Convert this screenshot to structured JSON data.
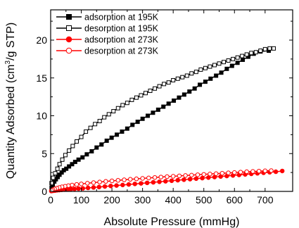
{
  "chart_data": {
    "type": "line",
    "xlabel": "Absolute Pressure (mmHg)",
    "ylabel_main": "Quantity Adsorbed (cm",
    "ylabel_sup": "3",
    "ylabel_tail": "/g STP)",
    "xlim": [
      0,
      790
    ],
    "ylim": [
      0,
      24
    ],
    "x_ticks": [
      "0",
      "100",
      "200",
      "300",
      "400",
      "500",
      "600",
      "700"
    ],
    "y_ticks": [
      "0",
      "5",
      "10",
      "15",
      "20"
    ],
    "legend_position": "top-left",
    "grid": false,
    "series": [
      {
        "name": "adsorption at 195K",
        "color": "#000000",
        "marker": "square",
        "filled": true,
        "points": [
          [
            3,
            0.5
          ],
          [
            7,
            0.9
          ],
          [
            12,
            1.3
          ],
          [
            17,
            1.6
          ],
          [
            23,
            1.9
          ],
          [
            29,
            2.2
          ],
          [
            36,
            2.5
          ],
          [
            43,
            2.8
          ],
          [
            51,
            3.0
          ],
          [
            60,
            3.3
          ],
          [
            70,
            3.6
          ],
          [
            80,
            3.9
          ],
          [
            91,
            4.2
          ],
          [
            104,
            4.5
          ],
          [
            118,
            4.9
          ],
          [
            134,
            5.3
          ],
          [
            150,
            5.8
          ],
          [
            166,
            6.2
          ],
          [
            183,
            6.7
          ],
          [
            199,
            7.1
          ],
          [
            216,
            7.5
          ],
          [
            233,
            7.9
          ],
          [
            250,
            8.3
          ],
          [
            267,
            8.8
          ],
          [
            284,
            9.2
          ],
          [
            300,
            9.6
          ],
          [
            317,
            10.0
          ],
          [
            334,
            10.4
          ],
          [
            351,
            10.8
          ],
          [
            368,
            11.2
          ],
          [
            385,
            11.6
          ],
          [
            402,
            12.0
          ],
          [
            419,
            12.4
          ],
          [
            436,
            12.8
          ],
          [
            453,
            13.2
          ],
          [
            470,
            13.6
          ],
          [
            487,
            14.1
          ],
          [
            505,
            14.5
          ],
          [
            522,
            14.9
          ],
          [
            540,
            15.3
          ],
          [
            557,
            15.7
          ],
          [
            575,
            16.2
          ],
          [
            592,
            16.6
          ],
          [
            610,
            17.0
          ],
          [
            627,
            17.4
          ],
          [
            645,
            17.8
          ],
          [
            663,
            18.2
          ],
          [
            685,
            18.5
          ],
          [
            712,
            18.6
          ]
        ]
      },
      {
        "name": "desorption at 195K",
        "color": "#000000",
        "marker": "square",
        "filled": false,
        "points": [
          [
            728,
            18.9
          ],
          [
            715,
            18.9
          ],
          [
            700,
            18.8
          ],
          [
            685,
            18.6
          ],
          [
            670,
            18.4
          ],
          [
            655,
            18.3
          ],
          [
            640,
            18.1
          ],
          [
            625,
            17.9
          ],
          [
            610,
            17.7
          ],
          [
            595,
            17.5
          ],
          [
            580,
            17.3
          ],
          [
            565,
            17.1
          ],
          [
            550,
            16.9
          ],
          [
            535,
            16.7
          ],
          [
            520,
            16.5
          ],
          [
            505,
            16.3
          ],
          [
            490,
            16.1
          ],
          [
            475,
            15.8
          ],
          [
            460,
            15.6
          ],
          [
            445,
            15.3
          ],
          [
            430,
            15.1
          ],
          [
            415,
            14.9
          ],
          [
            400,
            14.7
          ],
          [
            385,
            14.4
          ],
          [
            370,
            14.2
          ],
          [
            355,
            13.9
          ],
          [
            340,
            13.6
          ],
          [
            325,
            13.3
          ],
          [
            310,
            13.0
          ],
          [
            295,
            12.7
          ],
          [
            280,
            12.4
          ],
          [
            265,
            12.1
          ],
          [
            250,
            11.7
          ],
          [
            235,
            11.4
          ],
          [
            220,
            11.0
          ],
          [
            205,
            10.6
          ],
          [
            190,
            10.2
          ],
          [
            175,
            9.8
          ],
          [
            160,
            9.3
          ],
          [
            145,
            8.9
          ],
          [
            130,
            8.4
          ],
          [
            115,
            7.9
          ],
          [
            100,
            7.2
          ],
          [
            85,
            6.6
          ],
          [
            72,
            6.0
          ],
          [
            60,
            5.4
          ],
          [
            48,
            4.8
          ],
          [
            38,
            4.2
          ],
          [
            29,
            3.6
          ],
          [
            22,
            3.0
          ],
          [
            15,
            2.4
          ],
          [
            8,
            1.8
          ],
          [
            3,
            1.1
          ]
        ]
      },
      {
        "name": "adsorption at 273K",
        "color": "#ff0000",
        "marker": "circle",
        "filled": true,
        "points": [
          [
            2,
            0.05
          ],
          [
            6,
            0.08
          ],
          [
            10,
            0.1
          ],
          [
            15,
            0.12
          ],
          [
            21,
            0.15
          ],
          [
            28,
            0.18
          ],
          [
            36,
            0.21
          ],
          [
            45,
            0.24
          ],
          [
            55,
            0.27
          ],
          [
            66,
            0.3
          ],
          [
            78,
            0.33
          ],
          [
            91,
            0.37
          ],
          [
            105,
            0.4
          ],
          [
            122,
            0.46
          ],
          [
            140,
            0.52
          ],
          [
            158,
            0.58
          ],
          [
            177,
            0.65
          ],
          [
            196,
            0.72
          ],
          [
            215,
            0.78
          ],
          [
            235,
            0.85
          ],
          [
            255,
            0.92
          ],
          [
            275,
            0.99
          ],
          [
            295,
            1.06
          ],
          [
            315,
            1.13
          ],
          [
            335,
            1.2
          ],
          [
            355,
            1.27
          ],
          [
            375,
            1.34
          ],
          [
            395,
            1.41
          ],
          [
            415,
            1.48
          ],
          [
            435,
            1.55
          ],
          [
            455,
            1.62
          ],
          [
            475,
            1.69
          ],
          [
            495,
            1.76
          ],
          [
            515,
            1.83
          ],
          [
            535,
            1.9
          ],
          [
            555,
            1.97
          ],
          [
            575,
            2.04
          ],
          [
            595,
            2.11
          ],
          [
            615,
            2.18
          ],
          [
            635,
            2.25
          ],
          [
            655,
            2.32
          ],
          [
            675,
            2.39
          ],
          [
            695,
            2.46
          ],
          [
            715,
            2.53
          ],
          [
            735,
            2.6
          ],
          [
            756,
            2.7
          ]
        ]
      },
      {
        "name": "desorption at 273K",
        "color": "#ff0000",
        "marker": "circle",
        "filled": false,
        "points": [
          [
            720,
            2.75
          ],
          [
            700,
            2.72
          ],
          [
            680,
            2.68
          ],
          [
            660,
            2.64
          ],
          [
            640,
            2.6
          ],
          [
            620,
            2.55
          ],
          [
            600,
            2.5
          ],
          [
            580,
            2.45
          ],
          [
            560,
            2.4
          ],
          [
            540,
            2.35
          ],
          [
            520,
            2.3
          ],
          [
            500,
            2.25
          ],
          [
            480,
            2.2
          ],
          [
            460,
            2.15
          ],
          [
            440,
            2.1
          ],
          [
            420,
            2.05
          ],
          [
            400,
            2.0
          ],
          [
            380,
            1.95
          ],
          [
            360,
            1.9
          ],
          [
            340,
            1.84
          ],
          [
            320,
            1.78
          ],
          [
            300,
            1.72
          ],
          [
            280,
            1.66
          ],
          [
            260,
            1.6
          ],
          [
            240,
            1.53
          ],
          [
            220,
            1.46
          ],
          [
            200,
            1.39
          ],
          [
            180,
            1.32
          ],
          [
            160,
            1.24
          ],
          [
            140,
            1.16
          ],
          [
            120,
            1.08
          ],
          [
            100,
            0.99
          ],
          [
            85,
            0.92
          ],
          [
            70,
            0.84
          ],
          [
            58,
            0.76
          ],
          [
            47,
            0.68
          ],
          [
            37,
            0.6
          ],
          [
            28,
            0.51
          ],
          [
            20,
            0.42
          ],
          [
            13,
            0.33
          ],
          [
            7,
            0.22
          ],
          [
            3,
            0.12
          ]
        ]
      }
    ]
  }
}
